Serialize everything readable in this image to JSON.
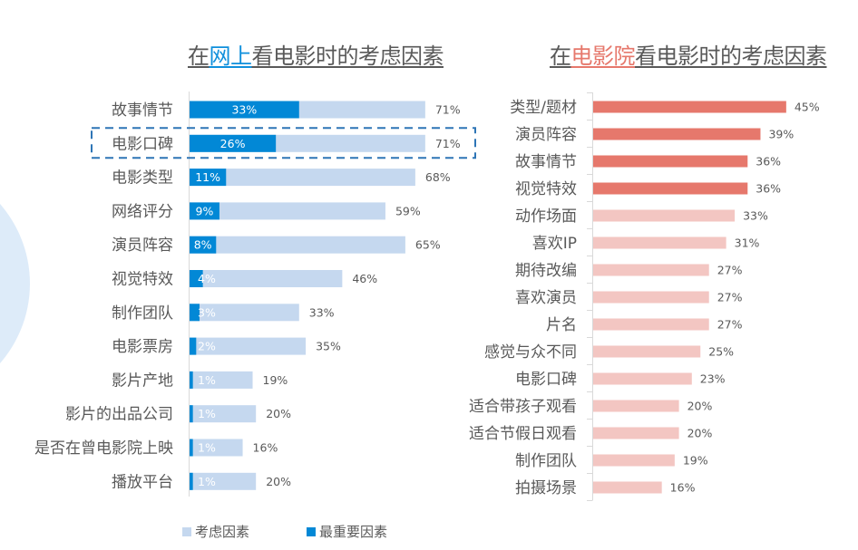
{
  "colors": {
    "online_consider": "#C5D8EF",
    "online_most": "#0288D6",
    "online_title_accent": "#0F8FDC",
    "cinema_top": "#E6786C",
    "cinema_rest": "#F3C6C2",
    "cinema_title_accent": "#E6786C",
    "highlight_box": "#2E75B6"
  },
  "left": {
    "title_prefix": "在",
    "title_highlight": "网上",
    "title_suffix": "看电影时的考虑因素"
  },
  "right": {
    "title_prefix": "在",
    "title_highlight": "电影院",
    "title_suffix": "看电影时的考虑因素"
  },
  "legend": {
    "consider": "考虑因素",
    "most": "最重要因素"
  },
  "chart_data": [
    {
      "type": "bar",
      "orientation": "horizontal",
      "title": "在网上看电影时的考虑因素",
      "categories": [
        "故事情节",
        "电影口碑",
        "电影类型",
        "网络评分",
        "演员阵容",
        "视觉特效",
        "制作团队",
        "电影票房",
        "影片产地",
        "影片的出品公司",
        "是否在曾电影院上映",
        "播放平台"
      ],
      "series": [
        {
          "name": "考虑因素",
          "values": [
            71,
            71,
            68,
            59,
            65,
            46,
            33,
            35,
            19,
            20,
            16,
            20
          ]
        },
        {
          "name": "最重要因素",
          "values": [
            33,
            26,
            11,
            9,
            8,
            4,
            3,
            2,
            1,
            1,
            1,
            1
          ]
        }
      ],
      "highlighted_category": "电影口碑",
      "unit": "%",
      "legend_position": "bottom",
      "grid": false
    },
    {
      "type": "bar",
      "orientation": "horizontal",
      "title": "在电影院看电影时的考虑因素",
      "categories": [
        "类型/题材",
        "演员阵容",
        "故事情节",
        "视觉特效",
        "动作场面",
        "喜欢IP",
        "期待改编",
        "喜欢演员",
        "片名",
        "感觉与众不同",
        "电影口碑",
        "适合带孩子观看",
        "适合节假日观看",
        "制作团队",
        "拍摄场景"
      ],
      "values": [
        45,
        39,
        36,
        36,
        33,
        31,
        27,
        27,
        27,
        25,
        23,
        20,
        20,
        19,
        16
      ],
      "top_highlighted_count": 4,
      "unit": "%",
      "grid": false
    }
  ]
}
